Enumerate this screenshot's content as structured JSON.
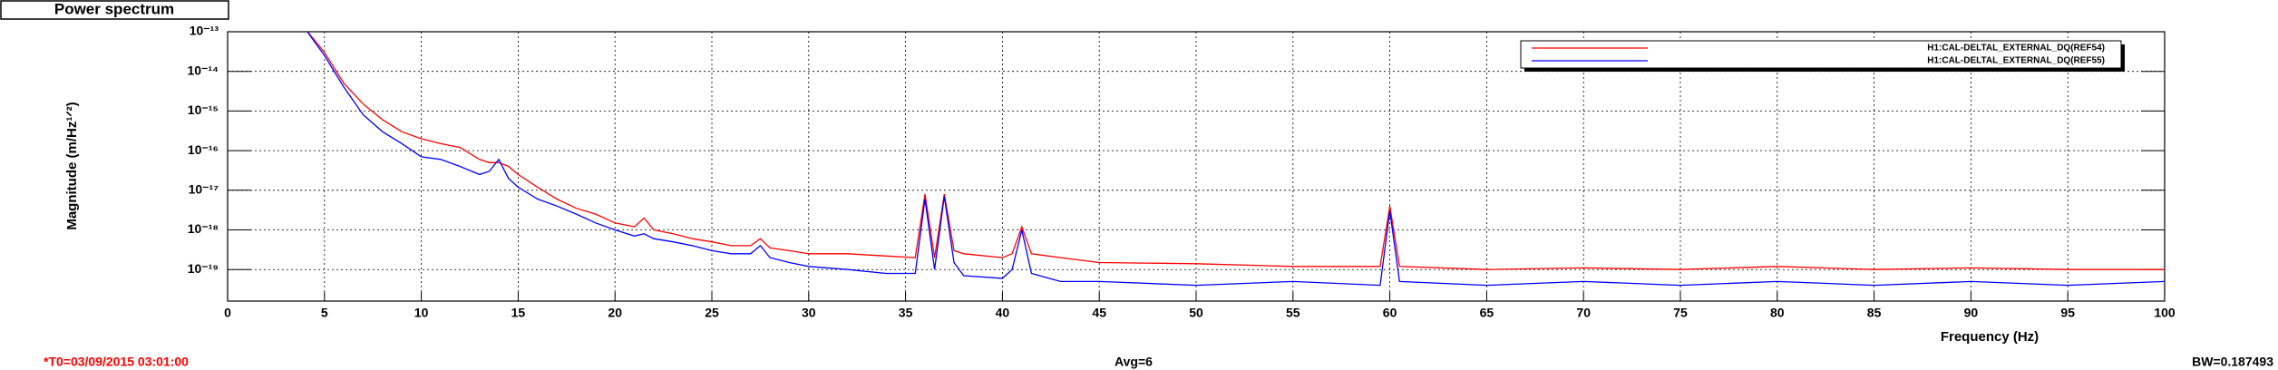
{
  "header": {
    "title": "Power spectrum"
  },
  "chart_data": {
    "type": "line",
    "xlabel": "Frequency (Hz)",
    "ylabel": "Magnitude (m/Hz¹ᐟ²)",
    "xlim": [
      0,
      100
    ],
    "xticks": [
      0,
      5,
      10,
      15,
      20,
      25,
      30,
      35,
      40,
      45,
      50,
      55,
      60,
      65,
      70,
      75,
      80,
      85,
      90,
      95,
      100
    ],
    "ylim": [
      1.6e-20,
      1e-13
    ],
    "yscale": "log",
    "yticks": [
      {
        "value": 1e-19,
        "label": "10⁻¹⁹"
      },
      {
        "value": 1e-18,
        "label": "10⁻¹⁸"
      },
      {
        "value": 1e-17,
        "label": "10⁻¹⁷"
      },
      {
        "value": 1e-16,
        "label": "10⁻¹⁶"
      },
      {
        "value": 1e-15,
        "label": "10⁻¹⁵"
      },
      {
        "value": 1e-14,
        "label": "10⁻¹⁴"
      },
      {
        "value": 1e-13,
        "label": "10⁻¹³"
      }
    ],
    "grid": true,
    "legend": "upper right",
    "x": [
      4,
      5,
      6,
      7,
      8,
      9,
      10,
      11,
      12,
      13,
      13.5,
      14,
      14.5,
      15,
      16,
      17,
      18,
      19,
      20,
      21,
      21.5,
      22,
      23,
      24,
      25,
      26,
      27,
      27.5,
      28,
      29,
      30,
      32,
      34,
      35.5,
      36,
      36.5,
      37,
      37.5,
      38,
      40,
      40.5,
      41,
      41.5,
      43,
      45,
      50,
      55,
      59.5,
      60,
      60.5,
      65,
      70,
      75,
      80,
      85,
      90,
      95,
      100
    ],
    "series": [
      {
        "name": "H1:CAL-DELTAL_EXTERNAL_DQ(REF54)",
        "color": "#ff0000",
        "values": [
          1.2e-13,
          3e-14,
          5e-15,
          1.5e-15,
          6e-16,
          3e-16,
          2e-16,
          1.5e-16,
          1.2e-16,
          6e-17,
          5e-17,
          5e-17,
          4e-17,
          2.5e-17,
          1.2e-17,
          6e-18,
          3.5e-18,
          2.5e-18,
          1.5e-18,
          1.2e-18,
          2e-18,
          1e-18,
          8e-19,
          6e-19,
          5e-19,
          4e-19,
          4e-19,
          6e-19,
          3.5e-19,
          3e-19,
          2.5e-19,
          2.5e-19,
          2.2e-19,
          2e-19,
          8e-18,
          2e-19,
          8e-18,
          3e-19,
          2.5e-19,
          2e-19,
          2.5e-19,
          1.2e-18,
          2.5e-19,
          2e-19,
          1.5e-19,
          1.4e-19,
          1.2e-19,
          1.2e-19,
          4e-18,
          1.2e-19,
          1e-19,
          1.1e-19,
          1e-19,
          1.2e-19,
          1e-19,
          1.1e-19,
          1e-19,
          1e-19
        ]
      },
      {
        "name": "H1:CAL-DELTAL_EXTERNAL_DQ(REF55)",
        "color": "#0000ff",
        "values": [
          1.2e-13,
          2.5e-14,
          4e-15,
          8e-16,
          3e-16,
          1.5e-16,
          7e-17,
          6e-17,
          4e-17,
          2.5e-17,
          3e-17,
          6e-17,
          2e-17,
          1.2e-17,
          6e-18,
          4e-18,
          2.5e-18,
          1.5e-18,
          1e-18,
          7e-19,
          8e-19,
          6e-19,
          5e-19,
          4e-19,
          3e-19,
          2.5e-19,
          2.5e-19,
          4e-19,
          2e-19,
          1.5e-19,
          1.2e-19,
          1e-19,
          8e-20,
          8e-20,
          6e-18,
          1e-19,
          7e-18,
          1.5e-19,
          7e-20,
          6e-20,
          1e-19,
          1e-18,
          8e-20,
          5e-20,
          5e-20,
          4e-20,
          5e-20,
          4e-20,
          3e-18,
          5e-20,
          4e-20,
          5e-20,
          4e-20,
          5e-20,
          4e-20,
          5e-20,
          4e-20,
          5e-20
        ]
      }
    ]
  },
  "footer": {
    "t0": "*T0=03/09/2015 03:01:00",
    "avg": "Avg=6",
    "bw": "BW=0.187493"
  }
}
